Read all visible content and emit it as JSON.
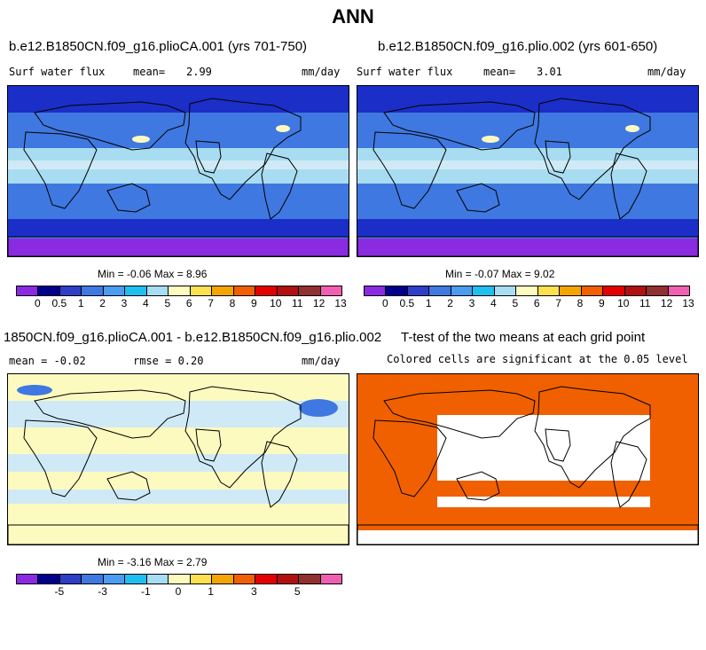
{
  "title": "ANN",
  "panels": {
    "p1": {
      "case_title": "b.e12.B1850CN.f09_g16.plioCA.001 (yrs 701-750)",
      "variable": "Surf water flux",
      "mean_label": "mean=",
      "mean_value": "2.99",
      "units": "mm/day",
      "minmax": "Min =  -0.06  Max =   8.96"
    },
    "p2": {
      "case_title": "b.e12.B1850CN.f09_g16.plio.002 (yrs 601-650)",
      "variable": "Surf water flux",
      "mean_label": "mean=",
      "mean_value": "3.01",
      "units": "mm/day",
      "minmax": "Min =  -0.07  Max =   9.02"
    },
    "p3": {
      "case_title": "1850CN.f09_g16.plioCA.001 - b.e12.B1850CN.f09_g16.plio.002",
      "mean_text": "mean =  -0.02",
      "rmse_text": "rmse =   0.20",
      "units": "mm/day",
      "minmax": "Min =  -3.16  Max =   2.79"
    },
    "p4": {
      "case_title": "T-test of the two means at each grid point",
      "subtitle": "Colored cells are significant at the 0.05 level"
    }
  },
  "colorbar_colors": [
    "#8a2be2",
    "#00008b",
    "#2e3fc6",
    "#3f78e0",
    "#4b9cf0",
    "#1fbfef",
    "#a8dcf0",
    "#fdfac0",
    "#fde050",
    "#f5a500",
    "#f06000",
    "#e40000",
    "#b01010",
    "#903030",
    "#f060b0"
  ],
  "colorbar_abs_ticks": [
    "0",
    "0.5",
    "1",
    "2",
    "3",
    "4",
    "5",
    "6",
    "7",
    "8",
    "9",
    "10",
    "11",
    "12",
    "13"
  ],
  "colorbar_diff_ticks": [
    "-5",
    "-3",
    "-1",
    "0",
    "1",
    "3",
    "5"
  ],
  "map_colors": {
    "deep": "#1c2ec8",
    "mid": "#3f78e0",
    "light": "#a8dcf0",
    "pale": "#cfeaf6",
    "yellow": "#fdfac0",
    "violet": "#8a2be2",
    "ttest": "#f06000"
  }
}
